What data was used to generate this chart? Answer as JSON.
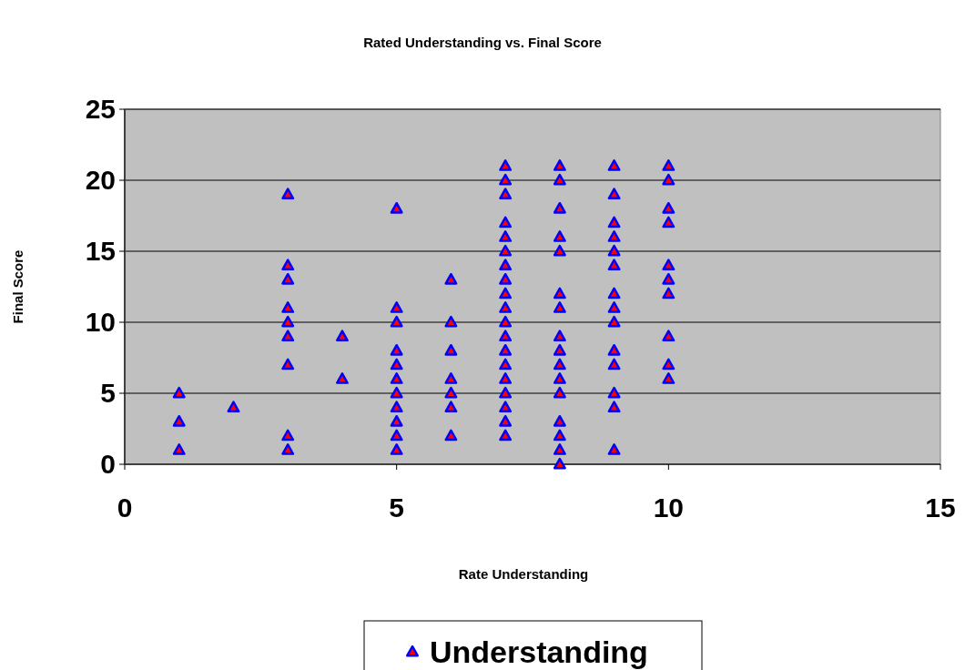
{
  "chart_data": {
    "type": "scatter",
    "title": "Rated Understanding vs. Final Score",
    "xlabel": "Rate Understanding",
    "ylabel": "Final Score",
    "xlim": [
      0,
      15
    ],
    "xticks": [
      0,
      5,
      10,
      15
    ],
    "ylim": [
      0,
      25
    ],
    "yticks": [
      0,
      5,
      10,
      15,
      20,
      25
    ],
    "grid": "y",
    "legend": "bottom",
    "marker": "triangle",
    "series": [
      {
        "name": "Understanding",
        "color": "#0000ff",
        "x": [
          1,
          1,
          1,
          2,
          3,
          3,
          3,
          3,
          3,
          3,
          3,
          3,
          3,
          4,
          4,
          5,
          5,
          5,
          5,
          5,
          5,
          5,
          5,
          5,
          5,
          5,
          6,
          6,
          6,
          6,
          6,
          6,
          6,
          7,
          7,
          7,
          7,
          7,
          7,
          7,
          7,
          7,
          7,
          7,
          7,
          7,
          7,
          7,
          7,
          7,
          7,
          7,
          8,
          8,
          8,
          8,
          8,
          8,
          8,
          8,
          8,
          8,
          8,
          8,
          8,
          8,
          8,
          8,
          9,
          9,
          9,
          9,
          9,
          9,
          9,
          9,
          9,
          9,
          9,
          9,
          9,
          9,
          10,
          10,
          10,
          10,
          10,
          10,
          10,
          10,
          10,
          10
        ],
        "values": [
          5,
          3,
          1,
          4,
          19,
          14,
          13,
          11,
          10,
          9,
          7,
          2,
          1,
          9,
          6,
          18,
          11,
          10,
          8,
          7,
          6,
          5,
          4,
          3,
          2,
          1,
          13,
          10,
          8,
          6,
          5,
          4,
          2,
          21,
          20,
          19,
          17,
          16,
          15,
          14,
          13,
          12,
          11,
          10,
          9,
          8,
          7,
          6,
          5,
          4,
          3,
          2,
          21,
          20,
          18,
          16,
          15,
          12,
          11,
          9,
          8,
          7,
          6,
          5,
          3,
          2,
          1,
          0,
          21,
          19,
          17,
          16,
          15,
          14,
          12,
          11,
          10,
          8,
          7,
          5,
          4,
          1,
          21,
          20,
          18,
          17,
          14,
          13,
          12,
          9,
          7,
          6
        ]
      }
    ]
  }
}
